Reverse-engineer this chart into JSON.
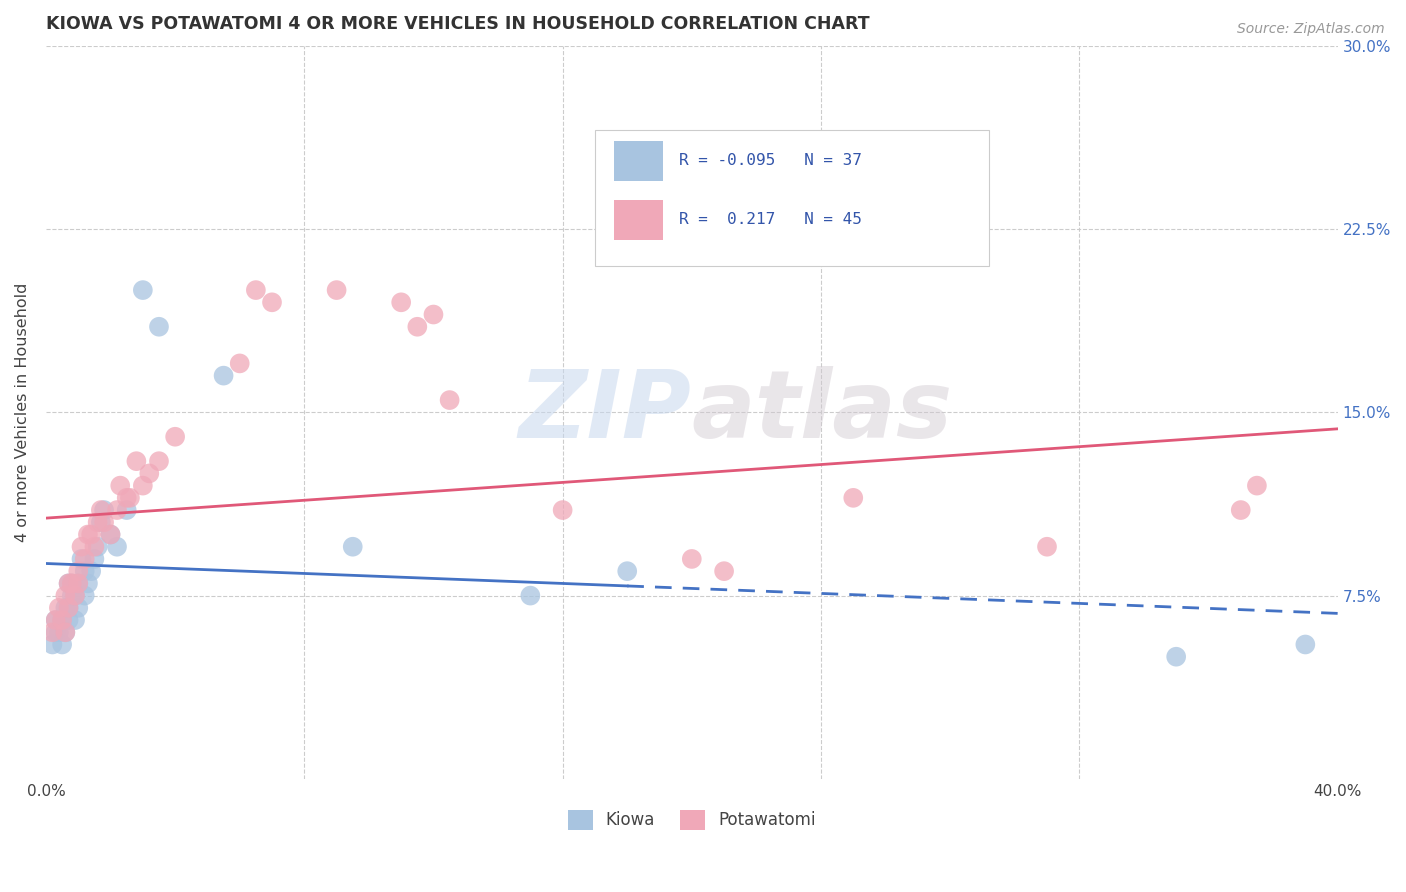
{
  "title": "KIOWA VS POTAWATOMI 4 OR MORE VEHICLES IN HOUSEHOLD CORRELATION CHART",
  "source": "Source: ZipAtlas.com",
  "ylabel": "4 or more Vehicles in Household",
  "xlim": [
    0.0,
    0.4
  ],
  "ylim": [
    0.0,
    0.3
  ],
  "xticks": [
    0.0,
    0.08,
    0.16,
    0.24,
    0.32,
    0.4
  ],
  "xtick_labels": [
    "0.0%",
    "",
    "",
    "",
    "",
    "40.0%"
  ],
  "yticks_right": [
    0.0,
    0.075,
    0.15,
    0.225,
    0.3
  ],
  "ytick_labels_right": [
    "",
    "7.5%",
    "15.0%",
    "22.5%",
    "30.0%"
  ],
  "kiowa_color": "#a8c4e0",
  "potawatomi_color": "#f0a8b8",
  "kiowa_line_color": "#4472c4",
  "potawatomi_line_color": "#e05878",
  "kiowa_R": -0.095,
  "kiowa_N": 37,
  "potawatomi_R": 0.217,
  "potawatomi_N": 45,
  "watermark": "ZIPatlas",
  "background_color": "#ffffff",
  "grid_color": "#cccccc",
  "kiowa_x": [
    0.002,
    0.003,
    0.003,
    0.004,
    0.005,
    0.005,
    0.006,
    0.006,
    0.007,
    0.007,
    0.007,
    0.008,
    0.008,
    0.009,
    0.009,
    0.01,
    0.01,
    0.011,
    0.012,
    0.012,
    0.013,
    0.014,
    0.015,
    0.016,
    0.017,
    0.018,
    0.02,
    0.022,
    0.025,
    0.03,
    0.035,
    0.055,
    0.095,
    0.15,
    0.18,
    0.35,
    0.39
  ],
  "kiowa_y": [
    0.055,
    0.06,
    0.065,
    0.06,
    0.055,
    0.065,
    0.06,
    0.07,
    0.065,
    0.07,
    0.08,
    0.075,
    0.08,
    0.065,
    0.075,
    0.07,
    0.08,
    0.09,
    0.075,
    0.085,
    0.08,
    0.085,
    0.09,
    0.095,
    0.105,
    0.11,
    0.1,
    0.095,
    0.11,
    0.2,
    0.185,
    0.165,
    0.095,
    0.075,
    0.085,
    0.05,
    0.055
  ],
  "potawatomi_x": [
    0.002,
    0.003,
    0.004,
    0.005,
    0.006,
    0.006,
    0.007,
    0.007,
    0.008,
    0.009,
    0.01,
    0.01,
    0.011,
    0.012,
    0.013,
    0.014,
    0.015,
    0.016,
    0.017,
    0.018,
    0.02,
    0.022,
    0.023,
    0.025,
    0.026,
    0.028,
    0.03,
    0.032,
    0.035,
    0.04,
    0.06,
    0.065,
    0.07,
    0.09,
    0.11,
    0.115,
    0.12,
    0.125,
    0.16,
    0.2,
    0.21,
    0.25,
    0.31,
    0.37,
    0.375
  ],
  "potawatomi_y": [
    0.06,
    0.065,
    0.07,
    0.065,
    0.06,
    0.075,
    0.07,
    0.08,
    0.08,
    0.075,
    0.08,
    0.085,
    0.095,
    0.09,
    0.1,
    0.1,
    0.095,
    0.105,
    0.11,
    0.105,
    0.1,
    0.11,
    0.12,
    0.115,
    0.115,
    0.13,
    0.12,
    0.125,
    0.13,
    0.14,
    0.17,
    0.2,
    0.195,
    0.2,
    0.195,
    0.185,
    0.19,
    0.155,
    0.11,
    0.09,
    0.085,
    0.115,
    0.095,
    0.11,
    0.12
  ]
}
